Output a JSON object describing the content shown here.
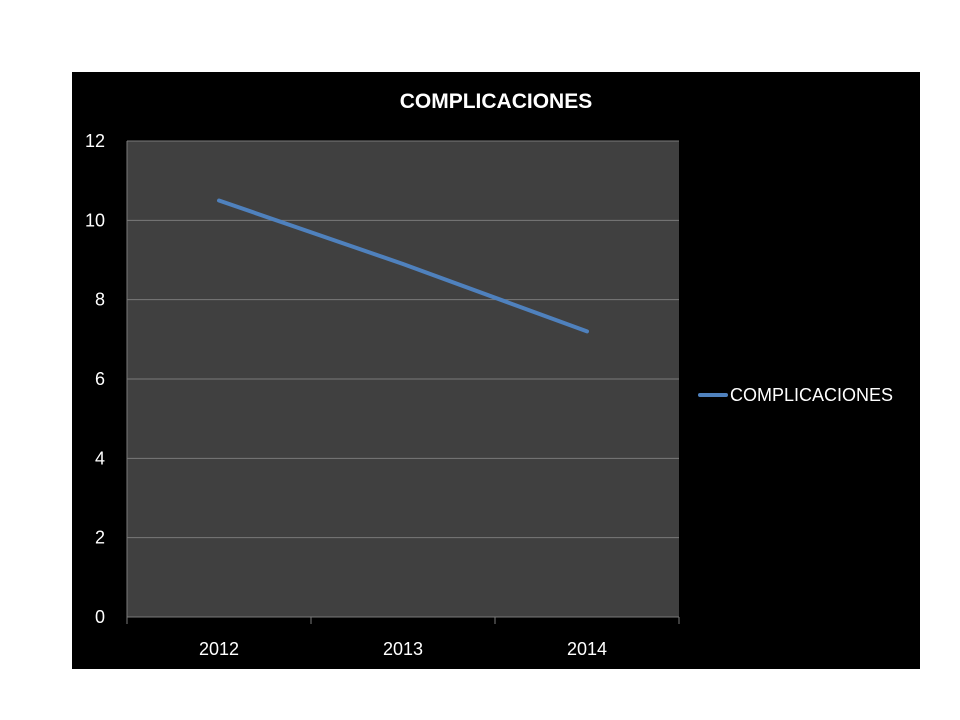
{
  "chart_data": {
    "type": "line",
    "title": "COMPLICACIONES",
    "categories": [
      "2012",
      "2013",
      "2014"
    ],
    "series": [
      {
        "name": "COMPLICACIONES",
        "values": [
          10.5,
          8.9,
          7.2
        ],
        "color": "#4F81BD"
      }
    ],
    "ylim": [
      0,
      12
    ],
    "yticks": [
      "0",
      "2",
      "4",
      "6",
      "8",
      "10",
      "12"
    ],
    "xlabel": "",
    "ylabel": "",
    "grid": true,
    "legend": "right",
    "colors": {
      "background": "#000000",
      "plot_area": "#404040",
      "gridline": "#7a7a7a",
      "text": "#ffffff"
    }
  }
}
